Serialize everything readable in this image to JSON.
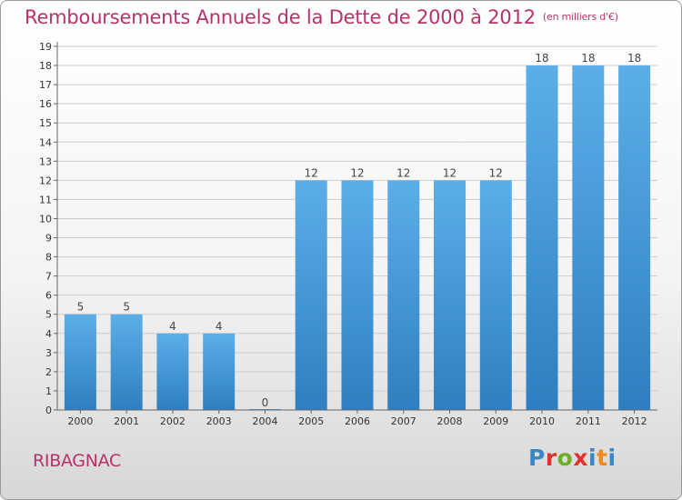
{
  "title": "Remboursements Annuels de la Dette de 2000 à 2012",
  "subtitle": "(en milliers d'€)",
  "commune": "RIBAGNAC",
  "logo": {
    "letters": [
      "P",
      "r",
      "o",
      "x",
      "i",
      "t",
      "i"
    ],
    "colors": [
      "#3a87c8",
      "#e2312f",
      "#6fae2b",
      "#e2312f",
      "#3a87c8",
      "#f08a1c",
      "#3a87c8"
    ]
  },
  "colors": {
    "bar": "#4a9cdc",
    "title": "#b5336a",
    "grid": "#cccccc"
  },
  "chart_data": {
    "type": "bar",
    "categories": [
      "2000",
      "2001",
      "2002",
      "2003",
      "2004",
      "2005",
      "2006",
      "2007",
      "2008",
      "2009",
      "2010",
      "2011",
      "2012"
    ],
    "values": [
      5,
      5,
      4,
      4,
      0,
      12,
      12,
      12,
      12,
      12,
      18,
      18,
      18
    ],
    "ylim": [
      0,
      19
    ],
    "yticks": [
      0,
      1,
      2,
      3,
      4,
      5,
      6,
      7,
      8,
      9,
      10,
      11,
      12,
      13,
      14,
      15,
      16,
      17,
      18,
      19
    ],
    "grid": true,
    "data_labels": true
  }
}
